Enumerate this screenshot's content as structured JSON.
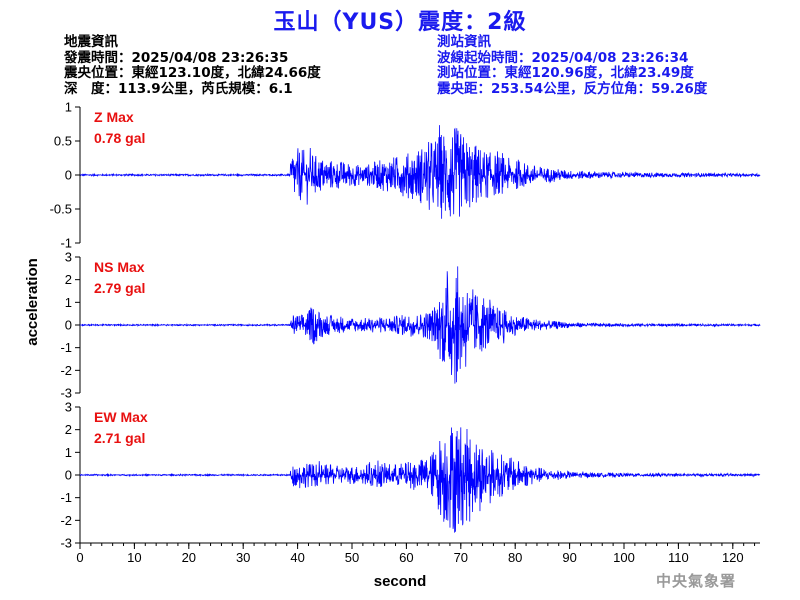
{
  "header": {
    "title": "玉山（YUS）震度：2級"
  },
  "earthquake_info": {
    "heading": "地震資訊",
    "origin_time": "發震時間：2025/04/08 23:26:35",
    "epicenter": "震央位置：東經123.10度，北緯24.66度",
    "depth_magnitude": "深　度：113.9公里，芮氏規模：6.1"
  },
  "station_info": {
    "heading": "測站資訊",
    "wave_start_time": "波線起始時間：2025/04/08 23:26:34",
    "station_location": "測站位置：東經120.96度，北緯23.49度",
    "distance_azimuth": "震央距：253.54公里，反方位角：59.26度"
  },
  "agency": "中央氣象署",
  "colors": {
    "trace": "#0000ff",
    "title": "#1a1aee",
    "max_label": "#e81010",
    "axis": "#000000"
  },
  "chart_data": {
    "type": "line",
    "xlabel": "second",
    "ylabel": "acceleration",
    "xlim": [
      0,
      125
    ],
    "xticks": [
      "0",
      "10",
      "20",
      "30",
      "40",
      "50",
      "60",
      "70",
      "80",
      "90",
      "100",
      "110",
      "120"
    ],
    "series": [
      {
        "name": "Z",
        "label_line1": "Z Max",
        "label_line2": "0.78 gal",
        "max_gal": 0.78,
        "ylim": [
          -1,
          1
        ],
        "yticks": [
          "1",
          "0.5",
          "0",
          "-0.5",
          "-1"
        ],
        "envelope": [
          [
            0,
            0.012
          ],
          [
            38.5,
            0.012
          ],
          [
            39,
            0.42
          ],
          [
            41,
            0.38
          ],
          [
            45,
            0.24
          ],
          [
            50,
            0.18
          ],
          [
            52,
            0.14
          ],
          [
            55,
            0.22
          ],
          [
            58,
            0.28
          ],
          [
            61,
            0.35
          ],
          [
            63,
            0.45
          ],
          [
            65,
            0.55
          ],
          [
            67,
            0.7
          ],
          [
            68,
            0.78
          ],
          [
            70,
            0.65
          ],
          [
            72,
            0.5
          ],
          [
            75,
            0.35
          ],
          [
            80,
            0.22
          ],
          [
            85,
            0.12
          ],
          [
            90,
            0.07
          ],
          [
            95,
            0.05
          ],
          [
            100,
            0.04
          ],
          [
            110,
            0.03
          ],
          [
            125,
            0.02
          ]
        ]
      },
      {
        "name": "NS",
        "label_line1": "NS Max",
        "label_line2": "2.79 gal",
        "max_gal": 2.79,
        "ylim": [
          -3,
          3
        ],
        "yticks": [
          "3",
          "2",
          "1",
          "0",
          "-1",
          "-2",
          "-3"
        ],
        "envelope": [
          [
            0,
            0.03
          ],
          [
            38.5,
            0.03
          ],
          [
            39,
            0.45
          ],
          [
            41,
            0.5
          ],
          [
            43,
            0.9
          ],
          [
            45,
            0.45
          ],
          [
            50,
            0.3
          ],
          [
            55,
            0.35
          ],
          [
            58,
            0.4
          ],
          [
            60,
            0.5
          ],
          [
            63,
            0.55
          ],
          [
            65,
            0.8
          ],
          [
            67,
            2.0
          ],
          [
            68,
            2.5
          ],
          [
            69,
            2.79
          ],
          [
            70,
            2.4
          ],
          [
            72,
            1.7
          ],
          [
            74,
            1.2
          ],
          [
            76,
            0.9
          ],
          [
            80,
            0.45
          ],
          [
            85,
            0.22
          ],
          [
            90,
            0.12
          ],
          [
            95,
            0.08
          ],
          [
            100,
            0.06
          ],
          [
            110,
            0.05
          ],
          [
            125,
            0.04
          ]
        ]
      },
      {
        "name": "EW",
        "label_line1": "EW Max",
        "label_line2": "2.71 gal",
        "max_gal": 2.71,
        "ylim": [
          -3,
          3
        ],
        "yticks": [
          "3",
          "2",
          "1",
          "0",
          "-1",
          "-2",
          "-3"
        ],
        "envelope": [
          [
            0,
            0.03
          ],
          [
            38.5,
            0.03
          ],
          [
            39,
            0.5
          ],
          [
            41,
            0.55
          ],
          [
            44,
            0.5
          ],
          [
            48,
            0.4
          ],
          [
            52,
            0.45
          ],
          [
            55,
            0.55
          ],
          [
            58,
            0.5
          ],
          [
            61,
            0.6
          ],
          [
            63,
            0.75
          ],
          [
            65,
            1.1
          ],
          [
            67,
            2.3
          ],
          [
            68,
            2.4
          ],
          [
            69,
            2.71
          ],
          [
            70,
            2.4
          ],
          [
            72,
            1.8
          ],
          [
            74,
            1.6
          ],
          [
            76,
            1.1
          ],
          [
            80,
            0.7
          ],
          [
            85,
            0.3
          ],
          [
            90,
            0.15
          ],
          [
            95,
            0.1
          ],
          [
            100,
            0.08
          ],
          [
            110,
            0.06
          ],
          [
            125,
            0.05
          ]
        ]
      }
    ]
  }
}
